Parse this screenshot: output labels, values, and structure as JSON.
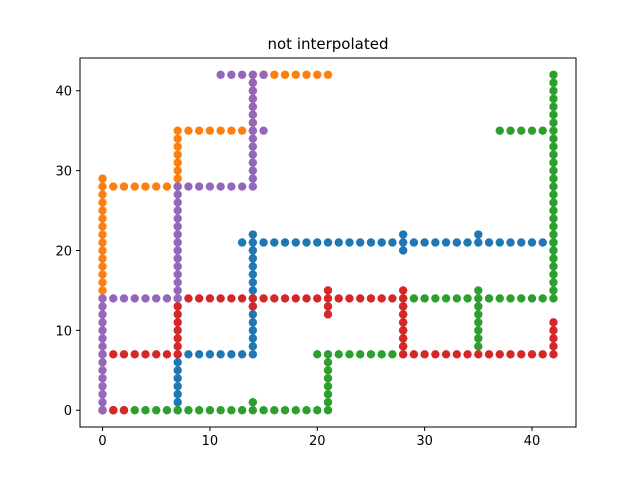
{
  "chart_data": {
    "type": "scatter",
    "title": "not interpolated",
    "xlabel": "",
    "ylabel": "",
    "xlim": [
      -2.1,
      44.1
    ],
    "ylim": [
      -2.1,
      44.1
    ],
    "xticks": [
      0,
      10,
      20,
      30,
      40
    ],
    "yticks": [
      0,
      10,
      20,
      30,
      40
    ],
    "grid": false,
    "series": [
      {
        "color": "#1f77b4",
        "points": [
          [
            7,
            0
          ],
          [
            7,
            1
          ],
          [
            7,
            2
          ],
          [
            7,
            3
          ],
          [
            7,
            4
          ],
          [
            7,
            5
          ],
          [
            7,
            6
          ],
          [
            7,
            7
          ],
          [
            8,
            7
          ],
          [
            9,
            7
          ],
          [
            10,
            7
          ],
          [
            11,
            7
          ],
          [
            12,
            7
          ],
          [
            13,
            7
          ],
          [
            14,
            7
          ],
          [
            14,
            8
          ],
          [
            14,
            9
          ],
          [
            14,
            10
          ],
          [
            14,
            11
          ],
          [
            14,
            12
          ],
          [
            14,
            13
          ],
          [
            14,
            14
          ],
          [
            14,
            15
          ],
          [
            14,
            16
          ],
          [
            14,
            17
          ],
          [
            14,
            18
          ],
          [
            14,
            19
          ],
          [
            14,
            20
          ],
          [
            14,
            21
          ],
          [
            14,
            22
          ],
          [
            13,
            21
          ],
          [
            15,
            21
          ],
          [
            16,
            21
          ],
          [
            17,
            21
          ],
          [
            18,
            21
          ],
          [
            19,
            21
          ],
          [
            20,
            21
          ],
          [
            21,
            21
          ],
          [
            22,
            21
          ],
          [
            23,
            21
          ],
          [
            24,
            21
          ],
          [
            25,
            21
          ],
          [
            26,
            21
          ],
          [
            27,
            21
          ],
          [
            28,
            20
          ],
          [
            28,
            21
          ],
          [
            28,
            22
          ],
          [
            29,
            21
          ],
          [
            30,
            21
          ],
          [
            31,
            21
          ],
          [
            32,
            21
          ],
          [
            33,
            21
          ],
          [
            34,
            21
          ],
          [
            35,
            21
          ],
          [
            35,
            22
          ],
          [
            36,
            21
          ],
          [
            37,
            21
          ],
          [
            38,
            21
          ],
          [
            39,
            21
          ],
          [
            40,
            21
          ],
          [
            41,
            21
          ],
          [
            42,
            21
          ]
        ]
      },
      {
        "color": "#ff7f0e",
        "points": [
          [
            0,
            14
          ],
          [
            0,
            15
          ],
          [
            0,
            16
          ],
          [
            0,
            17
          ],
          [
            0,
            18
          ],
          [
            0,
            19
          ],
          [
            0,
            20
          ],
          [
            0,
            21
          ],
          [
            0,
            22
          ],
          [
            0,
            23
          ],
          [
            0,
            24
          ],
          [
            0,
            25
          ],
          [
            0,
            26
          ],
          [
            0,
            27
          ],
          [
            0,
            28
          ],
          [
            0,
            29
          ],
          [
            1,
            28
          ],
          [
            2,
            28
          ],
          [
            3,
            28
          ],
          [
            4,
            28
          ],
          [
            5,
            28
          ],
          [
            6,
            28
          ],
          [
            7,
            28
          ],
          [
            7,
            29
          ],
          [
            7,
            30
          ],
          [
            7,
            31
          ],
          [
            7,
            32
          ],
          [
            7,
            33
          ],
          [
            7,
            34
          ],
          [
            7,
            35
          ],
          [
            8,
            35
          ],
          [
            9,
            35
          ],
          [
            10,
            35
          ],
          [
            11,
            35
          ],
          [
            12,
            35
          ],
          [
            13,
            35
          ],
          [
            14,
            35
          ],
          [
            14,
            36
          ],
          [
            14,
            37
          ],
          [
            14,
            38
          ],
          [
            14,
            39
          ],
          [
            14,
            40
          ],
          [
            14,
            41
          ],
          [
            14,
            42
          ],
          [
            15,
            42
          ],
          [
            16,
            42
          ],
          [
            17,
            42
          ],
          [
            18,
            42
          ],
          [
            19,
            42
          ],
          [
            20,
            42
          ],
          [
            21,
            42
          ]
        ]
      },
      {
        "color": "#2ca02c",
        "points": [
          [
            0,
            0
          ],
          [
            1,
            0
          ],
          [
            2,
            0
          ],
          [
            3,
            0
          ],
          [
            4,
            0
          ],
          [
            5,
            0
          ],
          [
            6,
            0
          ],
          [
            7,
            0
          ],
          [
            8,
            0
          ],
          [
            9,
            0
          ],
          [
            10,
            0
          ],
          [
            11,
            0
          ],
          [
            12,
            0
          ],
          [
            13,
            0
          ],
          [
            14,
            0
          ],
          [
            14,
            1
          ],
          [
            15,
            0
          ],
          [
            16,
            0
          ],
          [
            17,
            0
          ],
          [
            18,
            0
          ],
          [
            19,
            0
          ],
          [
            20,
            0
          ],
          [
            21,
            0
          ],
          [
            21,
            1
          ],
          [
            21,
            2
          ],
          [
            21,
            3
          ],
          [
            21,
            4
          ],
          [
            21,
            5
          ],
          [
            21,
            6
          ],
          [
            21,
            7
          ],
          [
            20,
            7
          ],
          [
            22,
            7
          ],
          [
            23,
            7
          ],
          [
            24,
            7
          ],
          [
            25,
            7
          ],
          [
            26,
            7
          ],
          [
            27,
            7
          ],
          [
            28,
            7
          ],
          [
            28,
            8
          ],
          [
            28,
            9
          ],
          [
            28,
            10
          ],
          [
            28,
            11
          ],
          [
            28,
            12
          ],
          [
            28,
            13
          ],
          [
            28,
            14
          ],
          [
            29,
            14
          ],
          [
            30,
            14
          ],
          [
            31,
            14
          ],
          [
            32,
            14
          ],
          [
            33,
            14
          ],
          [
            34,
            14
          ],
          [
            35,
            14
          ],
          [
            35,
            8
          ],
          [
            35,
            9
          ],
          [
            35,
            10
          ],
          [
            35,
            11
          ],
          [
            35,
            12
          ],
          [
            35,
            13
          ],
          [
            35,
            15
          ],
          [
            36,
            14
          ],
          [
            37,
            14
          ],
          [
            38,
            14
          ],
          [
            39,
            14
          ],
          [
            40,
            14
          ],
          [
            41,
            14
          ],
          [
            42,
            14
          ],
          [
            42,
            15
          ],
          [
            42,
            16
          ],
          [
            42,
            17
          ],
          [
            42,
            18
          ],
          [
            42,
            19
          ],
          [
            42,
            20
          ],
          [
            42,
            21
          ],
          [
            42,
            22
          ],
          [
            42,
            23
          ],
          [
            42,
            24
          ],
          [
            42,
            25
          ],
          [
            42,
            26
          ],
          [
            42,
            27
          ],
          [
            42,
            28
          ],
          [
            42,
            29
          ],
          [
            42,
            30
          ],
          [
            42,
            31
          ],
          [
            42,
            32
          ],
          [
            42,
            33
          ],
          [
            42,
            34
          ],
          [
            42,
            35
          ],
          [
            42,
            36
          ],
          [
            42,
            37
          ],
          [
            42,
            38
          ],
          [
            42,
            39
          ],
          [
            42,
            40
          ],
          [
            42,
            41
          ],
          [
            42,
            42
          ],
          [
            37,
            35
          ],
          [
            38,
            35
          ],
          [
            39,
            35
          ],
          [
            40,
            35
          ],
          [
            41,
            35
          ]
        ]
      },
      {
        "color": "#d62728",
        "points": [
          [
            0,
            0
          ],
          [
            1,
            0
          ],
          [
            2,
            0
          ],
          [
            0,
            7
          ],
          [
            1,
            7
          ],
          [
            2,
            7
          ],
          [
            3,
            7
          ],
          [
            4,
            7
          ],
          [
            5,
            7
          ],
          [
            6,
            7
          ],
          [
            7,
            7
          ],
          [
            7,
            8
          ],
          [
            7,
            9
          ],
          [
            7,
            10
          ],
          [
            7,
            11
          ],
          [
            7,
            12
          ],
          [
            7,
            13
          ],
          [
            7,
            14
          ],
          [
            8,
            14
          ],
          [
            9,
            14
          ],
          [
            10,
            14
          ],
          [
            11,
            14
          ],
          [
            12,
            14
          ],
          [
            13,
            14
          ],
          [
            14,
            13
          ],
          [
            14,
            14
          ],
          [
            15,
            14
          ],
          [
            16,
            14
          ],
          [
            17,
            14
          ],
          [
            18,
            14
          ],
          [
            19,
            14
          ],
          [
            20,
            14
          ],
          [
            21,
            12
          ],
          [
            21,
            13
          ],
          [
            21,
            14
          ],
          [
            21,
            15
          ],
          [
            22,
            14
          ],
          [
            23,
            14
          ],
          [
            24,
            14
          ],
          [
            25,
            14
          ],
          [
            26,
            14
          ],
          [
            27,
            14
          ],
          [
            28,
            14
          ],
          [
            28,
            15
          ],
          [
            28,
            8
          ],
          [
            28,
            9
          ],
          [
            28,
            10
          ],
          [
            28,
            11
          ],
          [
            28,
            12
          ],
          [
            28,
            13
          ],
          [
            28,
            7
          ],
          [
            29,
            7
          ],
          [
            30,
            7
          ],
          [
            31,
            7
          ],
          [
            32,
            7
          ],
          [
            33,
            7
          ],
          [
            34,
            7
          ],
          [
            35,
            7
          ],
          [
            36,
            7
          ],
          [
            37,
            7
          ],
          [
            38,
            7
          ],
          [
            39,
            7
          ],
          [
            40,
            7
          ],
          [
            41,
            7
          ],
          [
            42,
            7
          ],
          [
            42,
            8
          ],
          [
            42,
            9
          ],
          [
            42,
            10
          ],
          [
            42,
            11
          ]
        ]
      },
      {
        "color": "#9467bd",
        "points": [
          [
            0,
            0
          ],
          [
            0,
            1
          ],
          [
            0,
            2
          ],
          [
            0,
            3
          ],
          [
            0,
            4
          ],
          [
            0,
            5
          ],
          [
            0,
            6
          ],
          [
            0,
            7
          ],
          [
            0,
            8
          ],
          [
            0,
            9
          ],
          [
            0,
            10
          ],
          [
            0,
            11
          ],
          [
            0,
            12
          ],
          [
            0,
            13
          ],
          [
            0,
            14
          ],
          [
            1,
            14
          ],
          [
            2,
            14
          ],
          [
            3,
            14
          ],
          [
            4,
            14
          ],
          [
            5,
            14
          ],
          [
            6,
            14
          ],
          [
            7,
            14
          ],
          [
            7,
            15
          ],
          [
            7,
            16
          ],
          [
            7,
            17
          ],
          [
            7,
            18
          ],
          [
            7,
            19
          ],
          [
            7,
            20
          ],
          [
            7,
            21
          ],
          [
            7,
            22
          ],
          [
            7,
            23
          ],
          [
            7,
            24
          ],
          [
            7,
            25
          ],
          [
            7,
            26
          ],
          [
            7,
            27
          ],
          [
            7,
            28
          ],
          [
            8,
            28
          ],
          [
            9,
            28
          ],
          [
            10,
            28
          ],
          [
            11,
            28
          ],
          [
            12,
            28
          ],
          [
            13,
            28
          ],
          [
            14,
            28
          ],
          [
            14,
            29
          ],
          [
            14,
            30
          ],
          [
            14,
            31
          ],
          [
            14,
            32
          ],
          [
            14,
            33
          ],
          [
            14,
            34
          ],
          [
            14,
            35
          ],
          [
            15,
            35
          ],
          [
            14,
            36
          ],
          [
            14,
            37
          ],
          [
            14,
            38
          ],
          [
            14,
            39
          ],
          [
            14,
            40
          ],
          [
            14,
            41
          ],
          [
            14,
            42
          ],
          [
            11,
            42
          ],
          [
            12,
            42
          ],
          [
            13,
            42
          ],
          [
            15,
            42
          ]
        ]
      }
    ]
  }
}
